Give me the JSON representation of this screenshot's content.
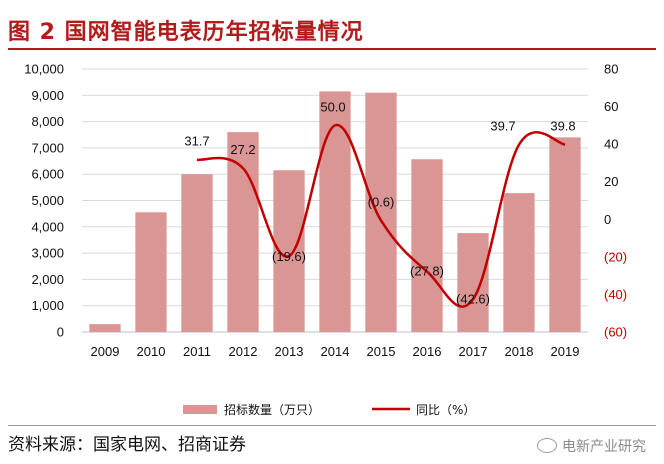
{
  "title": "图 2  国网智能电表历年招标量情况",
  "source": "资料来源：国家电网、招商证券",
  "watermark": "电新产业研究",
  "colors": {
    "bar": "#d99694",
    "line": "#c00000",
    "title": "#b31b1b",
    "neg_tick": "#c00000"
  },
  "chart_data": {
    "type": "bar",
    "title": "",
    "xlabel": "",
    "ylabel": "",
    "categories": [
      "2009",
      "2010",
      "2011",
      "2012",
      "2013",
      "2014",
      "2015",
      "2016",
      "2017",
      "2018",
      "2019"
    ],
    "ylim": [
      0,
      10000
    ],
    "y2lim": [
      -60,
      80
    ],
    "y_ticks": [
      "0",
      "1,000",
      "2,000",
      "3,000",
      "4,000",
      "5,000",
      "6,000",
      "7,000",
      "8,000",
      "9,000",
      "10,000"
    ],
    "y2_ticks": [
      "(60)",
      "(40)",
      "(20)",
      "0",
      "20",
      "40",
      "60",
      "80"
    ],
    "grid": true,
    "legend_position": "bottom",
    "series": [
      {
        "name": "招标数量（万只）",
        "type": "bar",
        "axis": "left",
        "values": [
          300,
          4550,
          6000,
          7600,
          6150,
          9150,
          9100,
          6570,
          3760,
          5280,
          7400
        ]
      },
      {
        "name": "同比（%）",
        "type": "line",
        "axis": "right",
        "values": [
          null,
          null,
          31.7,
          27.2,
          -19.6,
          50.0,
          -0.6,
          -27.8,
          -42.6,
          39.7,
          39.8
        ],
        "labels": [
          "",
          "",
          "31.7",
          "27.2",
          "(19.6)",
          "50.0",
          "(0.6)",
          "(27.8)",
          "(42.6)",
          "39.7",
          "39.8"
        ]
      }
    ]
  }
}
